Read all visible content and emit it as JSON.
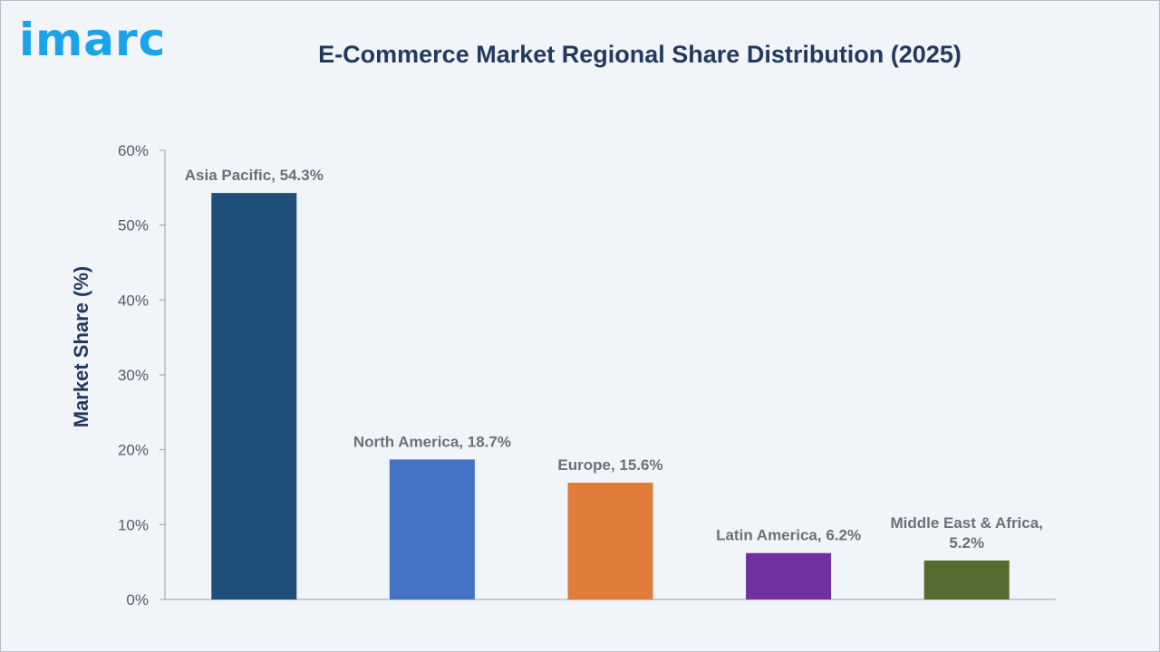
{
  "brand": {
    "logo_text": "imarc"
  },
  "chart_data": {
    "type": "bar",
    "title": "E-Commerce Market Regional Share Distribution (2025)",
    "xlabel": "",
    "ylabel": "Market Share (%)",
    "ylim": [
      0,
      60
    ],
    "y_ticks": [
      "0%",
      "10%",
      "20%",
      "30%",
      "40%",
      "50%",
      "60%"
    ],
    "grid": false,
    "categories": [
      "Asia Pacific",
      "North America",
      "Europe",
      "Latin America",
      "Middle East & Africa"
    ],
    "values": [
      54.3,
      18.7,
      15.6,
      6.2,
      5.2
    ],
    "data_labels": [
      [
        "Asia Pacific, 54.3%"
      ],
      [
        "North America, 18.7%"
      ],
      [
        "Europe, 15.6%"
      ],
      [
        "Latin America, 6.2%"
      ],
      [
        "Middle East & Africa,",
        "5.2%"
      ]
    ],
    "colors": [
      "#1f4e79",
      "#4472c4",
      "#e07b3a",
      "#7030a0",
      "#556b2f"
    ]
  }
}
